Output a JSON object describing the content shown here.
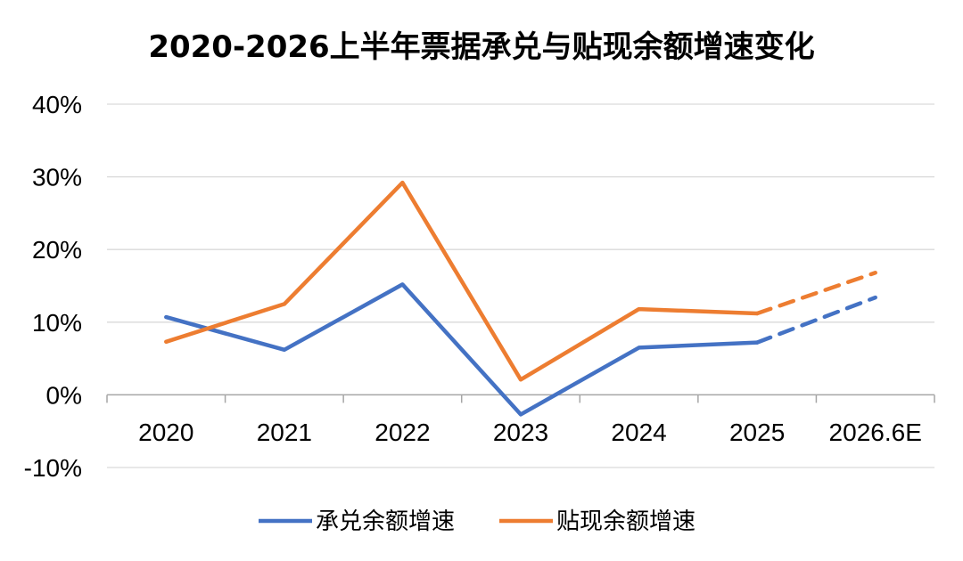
{
  "chart_data": {
    "type": "line",
    "title": "2020-2026上半年票据承兑与贴现余额增速变化",
    "categories": [
      "2020",
      "2021",
      "2022",
      "2023",
      "2024",
      "2025",
      "2026.6E"
    ],
    "y_ticks": [
      "40%",
      "30%",
      "20%",
      "10%",
      "0%",
      "-10%"
    ],
    "ylim": [
      -10,
      40
    ],
    "y_unit": "%",
    "grid": "horizontal",
    "legend_position": "bottom",
    "projected_from": "2025",
    "series": [
      {
        "name": "承兑余额增速",
        "color": "#4472C4",
        "values": [
          10.7,
          6.2,
          15.2,
          -2.7,
          6.5,
          7.2,
          13.4
        ]
      },
      {
        "name": "贴现余额增速",
        "color": "#ED7D31",
        "values": [
          7.3,
          12.5,
          29.2,
          2.1,
          11.8,
          11.2,
          16.8
        ]
      }
    ]
  }
}
